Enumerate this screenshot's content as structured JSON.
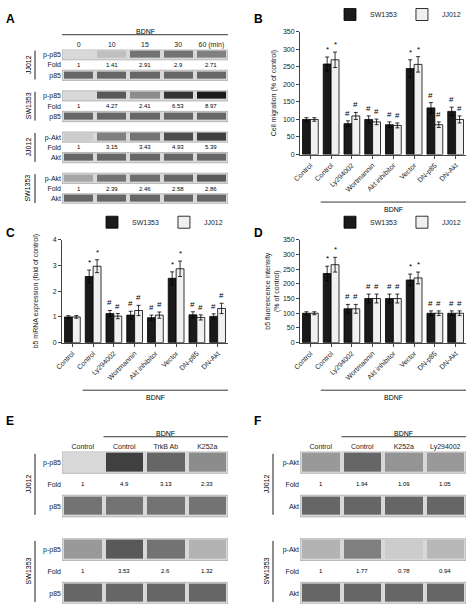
{
  "chart_data": [
    {
      "type": "heatmap",
      "title": "A",
      "categories": [
        "0",
        "10",
        "15",
        "30",
        "60 (min)"
      ],
      "bracket": {
        "label": "BDNF",
        "start": 0
      },
      "fold_label": "Fold",
      "series": [
        {
          "name": "p-p85",
          "group": "JJ012",
          "values": [
            0.15,
            0.25,
            0.55,
            0.55,
            0.5
          ],
          "fold": [
            1,
            1.41,
            2.91,
            2.9,
            2.71
          ]
        },
        {
          "name": "p85",
          "group": "JJ012",
          "values": [
            0.6,
            0.6,
            0.6,
            0.6,
            0.6
          ],
          "fold": null
        },
        {
          "name": "p-p85",
          "group": "SW1353",
          "values": [
            0.15,
            0.65,
            0.45,
            0.8,
            0.9
          ],
          "fold": [
            1,
            4.27,
            2.41,
            6.53,
            8.97
          ]
        },
        {
          "name": "p85",
          "group": "SW1353",
          "values": [
            0.6,
            0.6,
            0.6,
            0.6,
            0.6
          ],
          "fold": null
        },
        {
          "name": "p-Akt",
          "group": "JJ012",
          "values": [
            0.2,
            0.5,
            0.55,
            0.7,
            0.75
          ],
          "fold": [
            1,
            3.15,
            3.43,
            4.93,
            5.39
          ]
        },
        {
          "name": "Akt",
          "group": "JJ012",
          "values": [
            0.6,
            0.6,
            0.6,
            0.6,
            0.6
          ],
          "fold": null
        },
        {
          "name": "p-Akt",
          "group": "SW1353",
          "values": [
            0.35,
            0.55,
            0.57,
            0.6,
            0.65
          ],
          "fold": [
            1,
            2.39,
            2.46,
            2.58,
            2.86
          ]
        },
        {
          "name": "Akt",
          "group": "SW1353",
          "values": [
            0.6,
            0.6,
            0.6,
            0.6,
            0.6
          ],
          "fold": null
        }
      ]
    },
    {
      "type": "bar",
      "title": "B",
      "categories": [
        "Control",
        "Control",
        "Ly294002",
        "Wortmannin",
        "Akt inhibitor",
        "Vector",
        "DN-p85",
        "DN-Akt"
      ],
      "series": [
        {
          "name": "SW1353",
          "color": "#1a1a1a",
          "values": [
            100,
            258,
            88,
            100,
            85,
            245,
            133,
            123
          ],
          "errors": [
            5,
            20,
            8,
            10,
            8,
            25,
            15,
            12
          ],
          "marks": [
            null,
            "*",
            "#",
            "#",
            "#",
            "*",
            "#",
            "#"
          ]
        },
        {
          "name": "JJ012",
          "color": "#f0f0f0",
          "values": [
            100,
            270,
            110,
            93,
            83,
            257,
            85,
            100
          ],
          "errors": [
            5,
            22,
            10,
            8,
            7,
            22,
            8,
            10
          ],
          "marks": [
            null,
            "*",
            "#",
            "#",
            "#",
            "*",
            "#",
            "#"
          ]
        }
      ],
      "ylabel": "Cell migration (% of control)",
      "ylim": [
        0,
        350
      ],
      "yticks": [
        0,
        50,
        100,
        150,
        200,
        250,
        300,
        350
      ],
      "grid": false,
      "legend": "top",
      "bracket": {
        "label": "BDNF",
        "start": 1
      }
    },
    {
      "type": "bar",
      "title": "C",
      "categories": [
        "Control",
        "Control",
        "Ly294002",
        "Wortmannin",
        "Akt inhibitor",
        "Vector",
        "DN-p85",
        "DN-Akt"
      ],
      "series": [
        {
          "name": "SW1353",
          "color": "#1a1a1a",
          "values": [
            1.0,
            2.57,
            1.13,
            1.07,
            0.97,
            2.5,
            1.08,
            1.02
          ],
          "errors": [
            0.05,
            0.25,
            0.12,
            0.15,
            0.1,
            0.25,
            0.12,
            0.1
          ],
          "marks": [
            null,
            "*",
            "#",
            "#",
            "#",
            "*",
            "#",
            "#"
          ]
        },
        {
          "name": "JJ012",
          "color": "#f0f0f0",
          "values": [
            1.0,
            2.97,
            1.03,
            1.25,
            1.07,
            2.87,
            0.98,
            1.33
          ],
          "errors": [
            0.05,
            0.25,
            0.1,
            0.2,
            0.12,
            0.3,
            0.1,
            0.2
          ],
          "marks": [
            null,
            "*",
            "#",
            "#",
            "#",
            "*",
            "#",
            "#"
          ]
        }
      ],
      "ylabel": "b5 mRNA expression (fold of control)",
      "ylim": [
        0,
        4
      ],
      "yticks": [
        0,
        1,
        2,
        3,
        4
      ],
      "grid": false,
      "legend": "top",
      "bracket": {
        "label": "BDNF",
        "start": 1
      }
    },
    {
      "type": "bar",
      "title": "D",
      "categories": [
        "Control",
        "Control",
        "Ly294002",
        "Wortmannin",
        "Akt inhibitor",
        "Vector",
        "DN-p85",
        "DN-Akt"
      ],
      "series": [
        {
          "name": "SW1353",
          "color": "#1a1a1a",
          "values": [
            100,
            235,
            115,
            150,
            150,
            213,
            100,
            100
          ],
          "errors": [
            5,
            25,
            15,
            15,
            15,
            20,
            8,
            8
          ],
          "marks": [
            null,
            "*",
            "#",
            "#",
            "#",
            "*",
            "#",
            "#"
          ]
        },
        {
          "name": "JJ012",
          "color": "#f0f0f0",
          "values": [
            100,
            265,
            115,
            150,
            150,
            220,
            100,
            100
          ],
          "errors": [
            5,
            25,
            15,
            15,
            15,
            20,
            8,
            8
          ],
          "marks": [
            null,
            "*",
            "#",
            "#",
            "#",
            "*",
            "#",
            "#"
          ]
        }
      ],
      "ylabel": "b5 fluorescence intensity\n(% of control)",
      "ylim": [
        0,
        350
      ],
      "yticks": [
        0,
        50,
        100,
        150,
        200,
        250,
        300,
        350
      ],
      "grid": false,
      "legend": "top",
      "bracket": {
        "label": "BDNF",
        "start": 1
      }
    },
    {
      "type": "heatmap",
      "title": "E",
      "categories": [
        "Control",
        "Control",
        "TrkB Ab",
        "K252a"
      ],
      "bracket": {
        "label": "BDNF",
        "start": 1
      },
      "fold_label": "Fold",
      "series": [
        {
          "name": "p-p85",
          "group": "JJ012",
          "values": [
            0.15,
            0.75,
            0.6,
            0.45
          ],
          "fold": [
            1,
            4.9,
            3.13,
            2.33
          ]
        },
        {
          "name": "p85",
          "group": "JJ012",
          "values": [
            0.55,
            0.55,
            0.55,
            0.55
          ],
          "fold": null
        },
        {
          "name": "p-p85",
          "group": "SW1353",
          "values": [
            0.4,
            0.65,
            0.55,
            0.3
          ],
          "fold": [
            1,
            3.53,
            2.6,
            1.32
          ]
        },
        {
          "name": "p85",
          "group": "SW1353",
          "values": [
            0.6,
            0.6,
            0.6,
            0.6
          ],
          "fold": null
        }
      ]
    },
    {
      "type": "heatmap",
      "title": "F",
      "categories": [
        "Control",
        "Control",
        "K252a",
        "Ly294002"
      ],
      "bracket": {
        "label": "BDNF",
        "start": 1
      },
      "fold_label": "Fold",
      "series": [
        {
          "name": "p-Akt",
          "group": "JJ012",
          "values": [
            0.4,
            0.6,
            0.42,
            0.4
          ],
          "fold": [
            1,
            1.94,
            1.09,
            1.05
          ]
        },
        {
          "name": "Akt",
          "group": "JJ012",
          "values": [
            0.6,
            0.6,
            0.6,
            0.6
          ],
          "fold": null
        },
        {
          "name": "p-Akt",
          "group": "SW1353",
          "values": [
            0.3,
            0.5,
            0.2,
            0.28
          ],
          "fold": [
            1,
            1.77,
            0.78,
            0.94
          ]
        },
        {
          "name": "Akt",
          "group": "SW1353",
          "values": [
            0.6,
            0.6,
            0.6,
            0.6
          ],
          "fold": null
        }
      ]
    }
  ]
}
